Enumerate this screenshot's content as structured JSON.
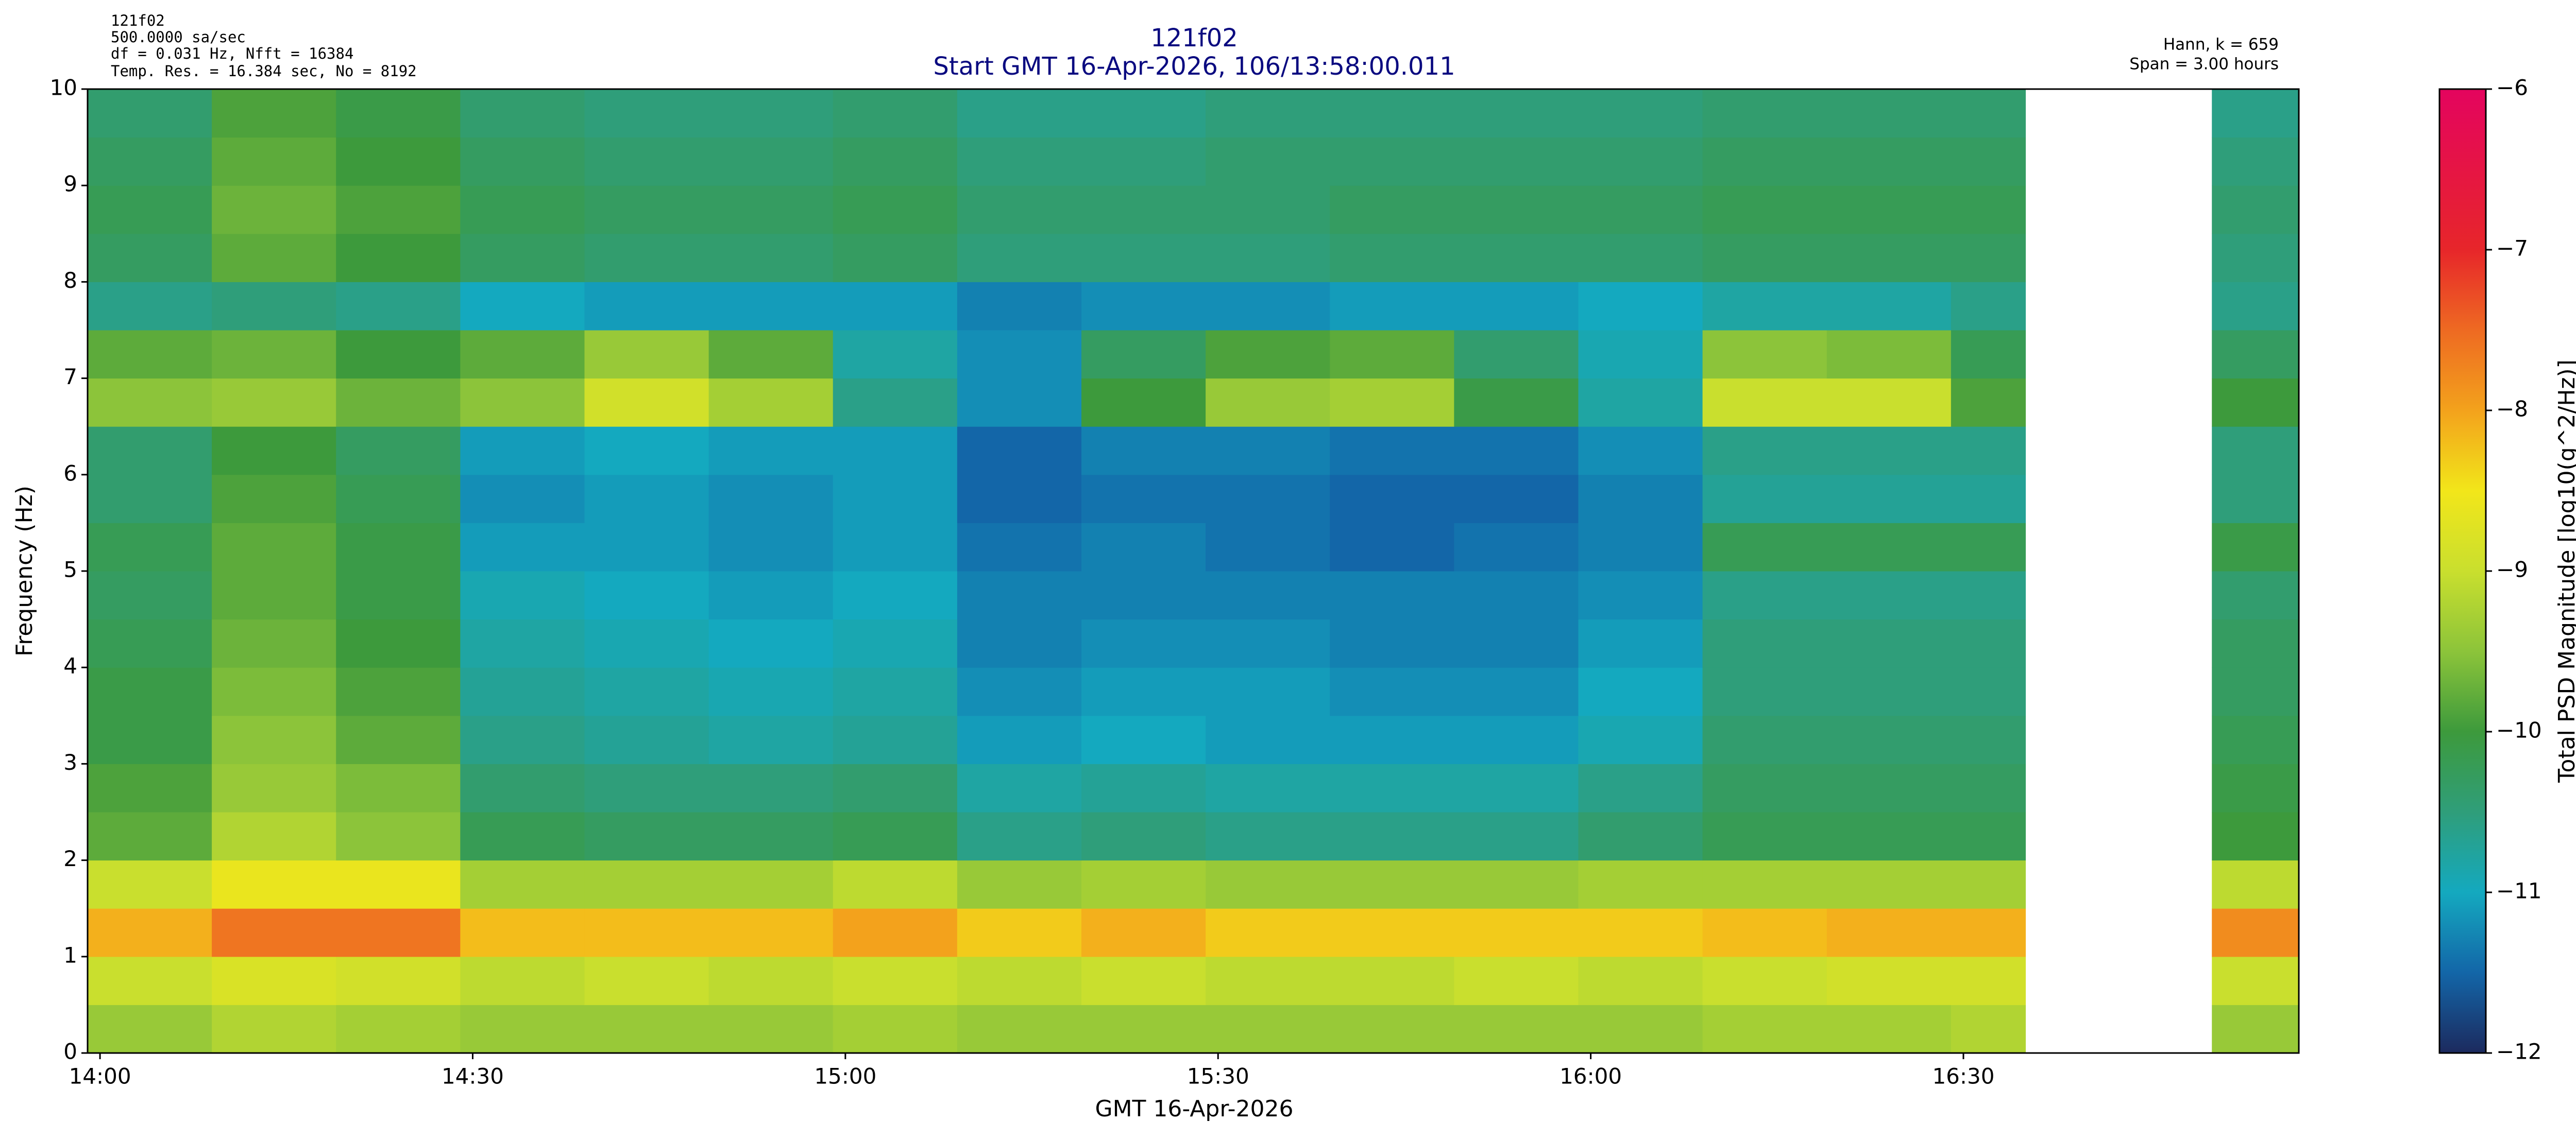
{
  "chart_data": {
    "type": "heatmap",
    "info_left": [
      "121f02",
      "500.0000 sa/sec",
      "df = 0.031 Hz,  Nfft = 16384",
      "Temp. Res. = 16.384 sec, No = 8192"
    ],
    "title": "121f02",
    "subtitle": "Start GMT 16-Apr-2026, 106/13:58:00.011",
    "info_right": [
      "Hann, k = 659",
      "Span = 3.00 hours"
    ],
    "x_label": "GMT 16-Apr-2026",
    "y_label": "Frequency (Hz)",
    "colorbar_label": "Total PSD Magnitude [log10(g^2/Hz)]",
    "xlim": [
      "13:59",
      "16:57"
    ],
    "xticks": [
      "14:00",
      "14:30",
      "15:00",
      "15:30",
      "16:00",
      "16:30"
    ],
    "ylim": [
      0,
      10
    ],
    "yticks": [
      0,
      1,
      2,
      3,
      4,
      5,
      6,
      7,
      8,
      9,
      10
    ],
    "xbins": [
      "13:59",
      "14:09",
      "14:19",
      "14:29",
      "14:39",
      "14:49",
      "14:59",
      "15:09",
      "15:19",
      "15:29",
      "15:39",
      "15:49",
      "15:59",
      "16:09",
      "16:19",
      "16:29",
      "16:35",
      "16:40",
      "16:50",
      "16:57"
    ],
    "ybins": [
      0,
      0.5,
      1,
      1.5,
      2,
      2.5,
      3,
      3.5,
      4,
      4.5,
      5,
      5.5,
      6,
      6.5,
      7,
      7.5,
      8,
      8.5,
      9,
      9.5,
      10
    ],
    "z": [
      [
        -9.4,
        -9.2,
        -9.3,
        -9.4,
        -9.4,
        -9.4,
        -9.3,
        -9.4,
        -9.4,
        -9.4,
        -9.4,
        -9.4,
        -9.4,
        -9.3,
        -9.3,
        -9.2,
        null,
        null,
        -9.4
      ],
      [
        -9.0,
        -8.8,
        -8.9,
        -9.1,
        -9.0,
        -9.1,
        -9.0,
        -9.1,
        -9.0,
        -9.1,
        -9.1,
        -9.0,
        -9.1,
        -9.0,
        -8.9,
        -8.9,
        null,
        null,
        -9.0
      ],
      [
        -8.1,
        -7.6,
        -7.6,
        -8.2,
        -8.2,
        -8.2,
        -8.0,
        -8.3,
        -8.1,
        -8.3,
        -8.3,
        -8.3,
        -8.3,
        -8.2,
        -8.1,
        -8.1,
        null,
        null,
        -7.8
      ],
      [
        -9.0,
        -8.6,
        -8.6,
        -9.3,
        -9.3,
        -9.3,
        -9.1,
        -9.4,
        -9.3,
        -9.4,
        -9.4,
        -9.4,
        -9.3,
        -9.3,
        -9.3,
        -9.3,
        null,
        null,
        -9.1
      ],
      [
        -9.8,
        -9.2,
        -9.5,
        -10.2,
        -10.3,
        -10.3,
        -10.2,
        -10.6,
        -10.5,
        -10.6,
        -10.6,
        -10.6,
        -10.4,
        -10.2,
        -10.2,
        -10.2,
        null,
        null,
        -10.0
      ],
      [
        -9.9,
        -9.4,
        -9.6,
        -10.4,
        -10.5,
        -10.5,
        -10.4,
        -10.8,
        -10.7,
        -10.8,
        -10.8,
        -10.8,
        -10.6,
        -10.3,
        -10.3,
        -10.3,
        null,
        null,
        -10.1
      ],
      [
        -10.1,
        -9.5,
        -9.8,
        -10.6,
        -10.7,
        -10.8,
        -10.7,
        -11.1,
        -11.0,
        -11.1,
        -11.1,
        -11.1,
        -10.9,
        -10.4,
        -10.4,
        -10.4,
        null,
        null,
        -10.2
      ],
      [
        -10.1,
        -9.6,
        -9.9,
        -10.7,
        -10.8,
        -10.9,
        -10.8,
        -11.2,
        -11.1,
        -11.1,
        -11.2,
        -11.2,
        -11.0,
        -10.5,
        -10.5,
        -10.5,
        null,
        null,
        -10.3
      ],
      [
        -10.2,
        -9.7,
        -10.0,
        -10.8,
        -10.9,
        -11.0,
        -10.9,
        -11.3,
        -11.2,
        -11.2,
        -11.3,
        -11.3,
        -11.1,
        -10.5,
        -10.5,
        -10.5,
        null,
        null,
        -10.3
      ],
      [
        -10.3,
        -9.8,
        -10.1,
        -10.9,
        -11.0,
        -11.1,
        -11.0,
        -11.3,
        -11.3,
        -11.3,
        -11.3,
        -11.3,
        -11.2,
        -10.6,
        -10.6,
        -10.6,
        null,
        null,
        -10.4
      ],
      [
        -10.2,
        -9.8,
        -10.1,
        -11.1,
        -11.1,
        -11.2,
        -11.1,
        -11.4,
        -11.3,
        -11.4,
        -11.5,
        -11.4,
        -11.3,
        -10.2,
        -10.2,
        -10.2,
        null,
        null,
        -10.1
      ],
      [
        -10.4,
        -9.9,
        -10.2,
        -11.2,
        -11.1,
        -11.2,
        -11.1,
        -11.5,
        -11.4,
        -11.4,
        -11.5,
        -11.5,
        -11.3,
        -10.7,
        -10.7,
        -10.7,
        null,
        null,
        -10.5
      ],
      [
        -10.4,
        -10.0,
        -10.3,
        -11.1,
        -11.0,
        -11.1,
        -11.1,
        -11.5,
        -11.3,
        -11.3,
        -11.4,
        -11.4,
        -11.2,
        -10.6,
        -10.6,
        -10.6,
        null,
        null,
        -10.5
      ],
      [
        -9.5,
        -9.4,
        -9.7,
        -9.5,
        -8.9,
        -9.3,
        -10.6,
        -11.2,
        -10.0,
        -9.4,
        -9.3,
        -10.1,
        -10.8,
        -9.0,
        -9.0,
        -9.9,
        null,
        null,
        -10.0
      ],
      [
        -9.8,
        -9.7,
        -10.0,
        -9.8,
        -9.4,
        -9.8,
        -10.8,
        -11.2,
        -10.3,
        -9.9,
        -9.8,
        -10.4,
        -10.9,
        -9.5,
        -9.6,
        -10.2,
        null,
        null,
        -10.3
      ],
      [
        -10.6,
        -10.5,
        -10.6,
        -11.0,
        -11.1,
        -11.1,
        -11.1,
        -11.3,
        -11.2,
        -11.2,
        -11.1,
        -11.1,
        -11.0,
        -10.8,
        -10.8,
        -10.6,
        null,
        null,
        -10.6
      ],
      [
        -10.3,
        -9.8,
        -10.0,
        -10.3,
        -10.4,
        -10.4,
        -10.3,
        -10.5,
        -10.5,
        -10.5,
        -10.4,
        -10.4,
        -10.4,
        -10.3,
        -10.3,
        -10.3,
        null,
        null,
        -10.5
      ],
      [
        -10.2,
        -9.7,
        -9.9,
        -10.2,
        -10.3,
        -10.3,
        -10.2,
        -10.4,
        -10.4,
        -10.4,
        -10.3,
        -10.3,
        -10.3,
        -10.2,
        -10.2,
        -10.2,
        null,
        null,
        -10.4
      ],
      [
        -10.3,
        -9.8,
        -10.0,
        -10.3,
        -10.4,
        -10.4,
        -10.3,
        -10.5,
        -10.5,
        -10.4,
        -10.4,
        -10.4,
        -10.4,
        -10.3,
        -10.3,
        -10.3,
        null,
        null,
        -10.5
      ],
      [
        -10.4,
        -9.9,
        -10.1,
        -10.4,
        -10.5,
        -10.5,
        -10.4,
        -10.6,
        -10.6,
        -10.5,
        -10.5,
        -10.5,
        -10.5,
        -10.4,
        -10.4,
        -10.4,
        null,
        null,
        -10.6
      ]
    ],
    "zlim": [
      -12,
      -6
    ],
    "colorbar_ticks": [
      {
        "value": -12,
        "label": "−12"
      },
      {
        "value": -11,
        "label": "−11"
      },
      {
        "value": -10,
        "label": "−10"
      },
      {
        "value": -9,
        "label": "−9"
      },
      {
        "value": -8,
        "label": "−8"
      },
      {
        "value": -7,
        "label": "−7"
      },
      {
        "value": -6,
        "label": "−6"
      }
    ],
    "colormap": [
      {
        "value": -12,
        "color": "#1c2a5e"
      },
      {
        "value": -11.5,
        "color": "#1366a8"
      },
      {
        "value": -11,
        "color": "#14a9bf"
      },
      {
        "value": -10.5,
        "color": "#2f9e7a"
      },
      {
        "value": -10,
        "color": "#3d9a3c"
      },
      {
        "value": -9.5,
        "color": "#8cc43a"
      },
      {
        "value": -9,
        "color": "#c9df2e"
      },
      {
        "value": -8.5,
        "color": "#f2e61a"
      },
      {
        "value": -8,
        "color": "#f3a21c"
      },
      {
        "value": -7.5,
        "color": "#ee6a22"
      },
      {
        "value": -7,
        "color": "#e7262a"
      },
      {
        "value": -6,
        "color": "#e4045e"
      }
    ]
  }
}
